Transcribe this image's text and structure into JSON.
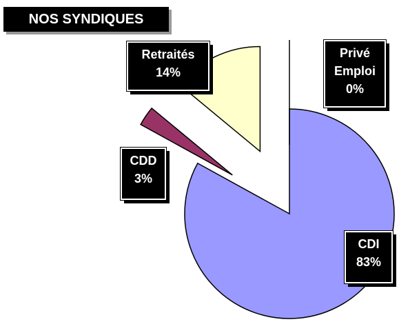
{
  "chart_data": {
    "type": "pie",
    "title": "NOS SYNDIQUES",
    "categories": [
      "CDI",
      "CDD",
      "Retraités",
      "Privé Emploi"
    ],
    "values": [
      83,
      3,
      14,
      0
    ],
    "value_labels": [
      "83%",
      "3%",
      "14%",
      "0%"
    ],
    "colors": [
      "#9999ff",
      "#993366",
      "#ffffcc",
      "#ccffff"
    ]
  }
}
